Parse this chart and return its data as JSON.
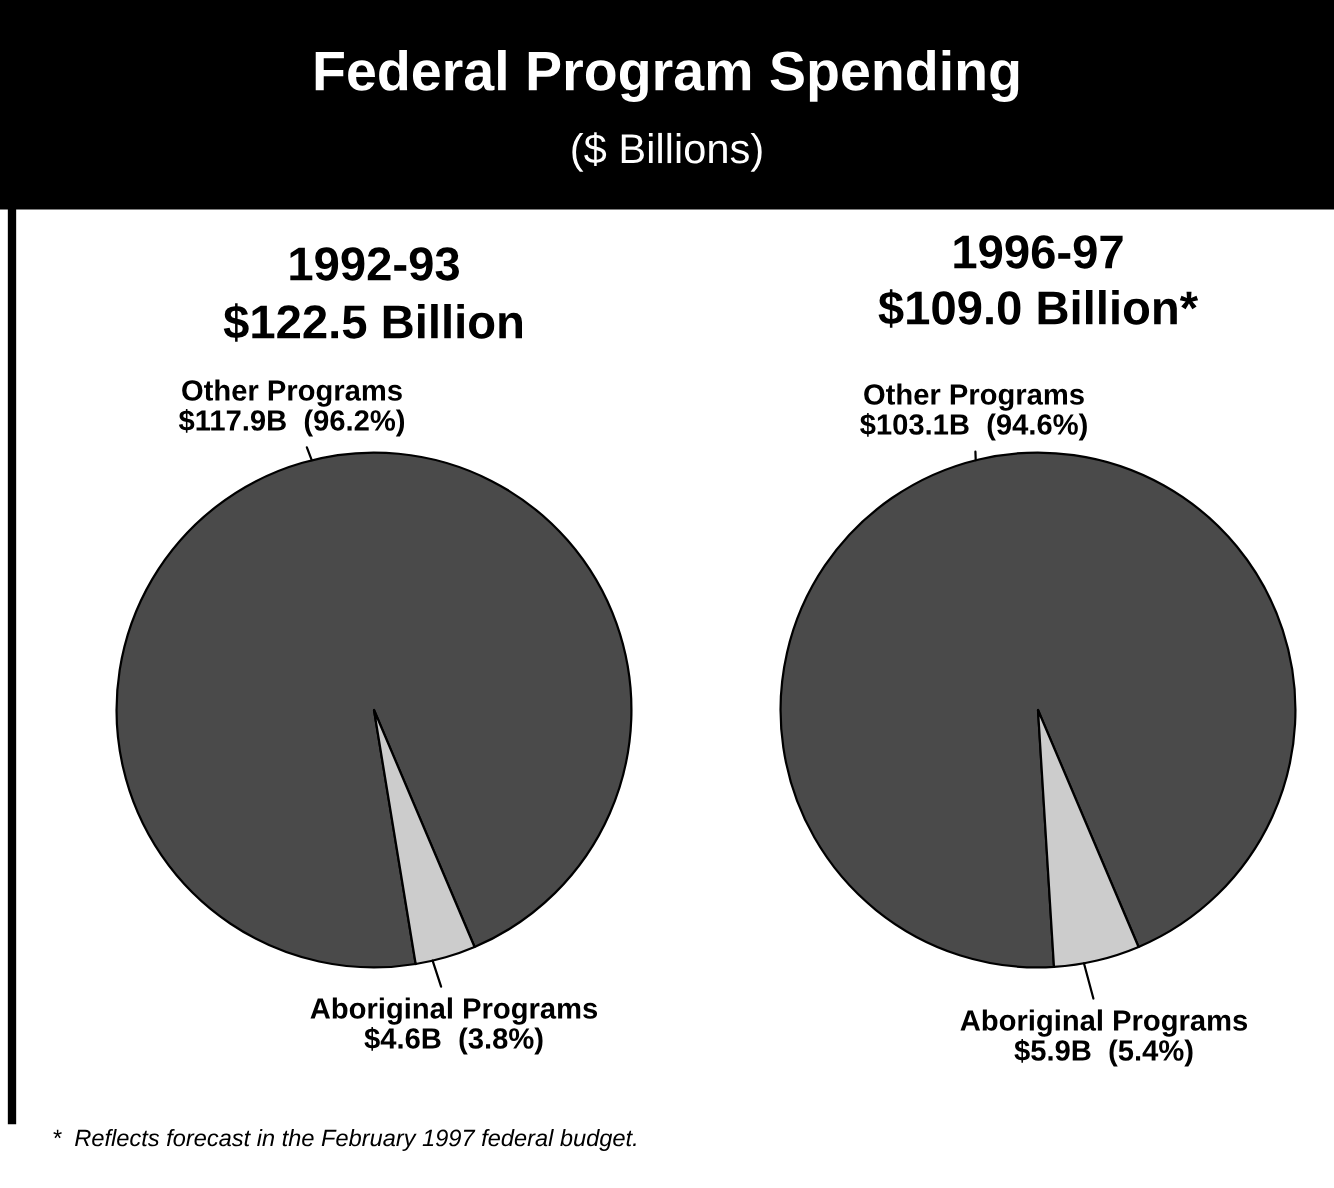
{
  "chart_data": [
    {
      "type": "other",
      "title": "Federal Program Spending",
      "subtitle": "($ Billions)",
      "annotations": [
        "*  Reflects forecast in the February 1997 federal budget."
      ]
    },
    {
      "type": "pie",
      "title": "1992-93",
      "subtitle": "$122.5 Billion",
      "categories": [
        "Other Programs",
        "Aboriginal Programs"
      ],
      "values": [
        96.2,
        3.8
      ],
      "colors": [
        "#4a4a4a",
        "#cccccc"
      ],
      "value_labels": [
        "$117.9B  (96.2%)",
        "$4.6B  (3.8%)"
      ]
    },
    {
      "type": "pie",
      "title": "1996-97",
      "subtitle": "$109.0 Billion*",
      "categories": [
        "Other Programs",
        "Aboriginal Programs"
      ],
      "values": [
        94.6,
        5.4
      ],
      "colors": [
        "#4a4a4a",
        "#cccccc"
      ],
      "value_labels": [
        "$103.1B  (94.6%)",
        "$5.9B  (5.4%)"
      ]
    }
  ]
}
